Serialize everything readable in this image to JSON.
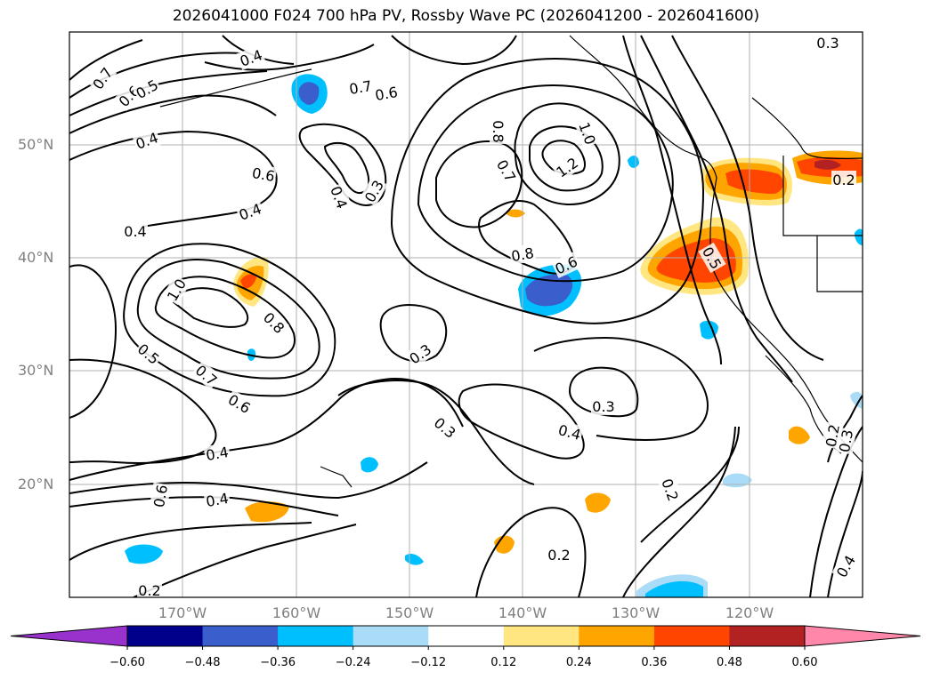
{
  "title": "2026041000 F024 700 hPa PV, Rossby Wave PC (2026041200 - 2026041600)",
  "latitude_labels": [
    "50°N",
    "40°N",
    "30°N",
    "20°N"
  ],
  "longitude_labels": [
    "170°W",
    "160°W",
    "150°W",
    "140°W",
    "130°W",
    "120°W"
  ],
  "contour_labels": [
    "0.7",
    "0.6",
    "0.5",
    "0.4",
    "0.4",
    "0.7",
    "0.6",
    "0.6",
    "0.4",
    "0.3",
    "0.4",
    "0.4",
    "0.8",
    "0.7",
    "1.0",
    "1.2",
    "0.8",
    "0.6",
    "0.5",
    "1.0",
    "0.8",
    "0.5",
    "0.7",
    "0.6",
    "0.3",
    "0.3",
    "0.3",
    "0.4",
    "0.4",
    "0.4",
    "0.6",
    "0.2",
    "0.2",
    "0.2",
    "0.2",
    "0.3",
    "0.4",
    "0.2",
    "0.3"
  ],
  "colorbar": {
    "ticks": [
      "−0.60",
      "−0.48",
      "−0.36",
      "−0.24",
      "−0.12",
      "0.12",
      "0.24",
      "0.36",
      "0.48",
      "0.60"
    ],
    "colors": [
      "#9932cc",
      "#00008b",
      "#3a5fcd",
      "#00bfff",
      "#aadcf7",
      "#ffffff",
      "#ffe680",
      "#ffa500",
      "#ff4500",
      "#b22222",
      "#ff88aa"
    ]
  }
}
